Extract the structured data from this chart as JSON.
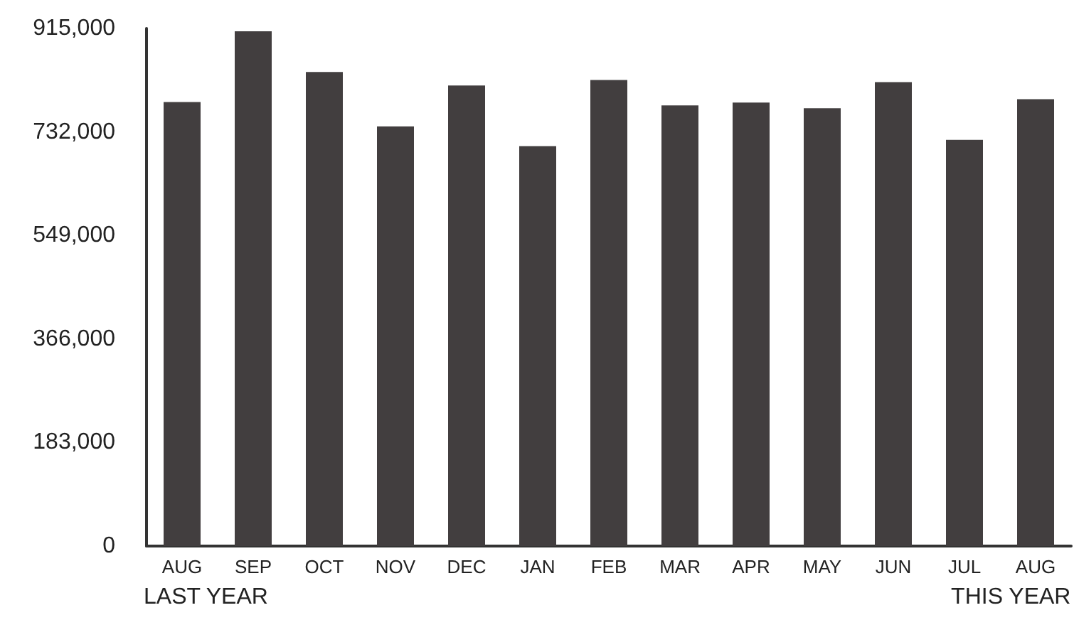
{
  "chart_data": {
    "type": "bar",
    "categories": [
      "AUG",
      "SEP",
      "OCT",
      "NOV",
      "DEC",
      "JAN",
      "FEB",
      "MAR",
      "APR",
      "MAY",
      "JUN",
      "JUL",
      "AUG"
    ],
    "values": [
      785000,
      910000,
      838000,
      742000,
      814000,
      707000,
      824000,
      779000,
      784000,
      774000,
      820000,
      718000,
      790000
    ],
    "color": "#423e3f",
    "ylim": [
      0,
      915000
    ],
    "yticks": [
      {
        "value": 0,
        "label": "0"
      },
      {
        "value": 183000,
        "label": "183,000"
      },
      {
        "value": 366000,
        "label": "366,000"
      },
      {
        "value": 549000,
        "label": "549,000"
      },
      {
        "value": 732000,
        "label": "732,000"
      },
      {
        "value": 915000,
        "label": "915,000"
      }
    ],
    "grid": false,
    "annotations": [
      "LAST YEAR",
      "THIS YEAR"
    ]
  }
}
